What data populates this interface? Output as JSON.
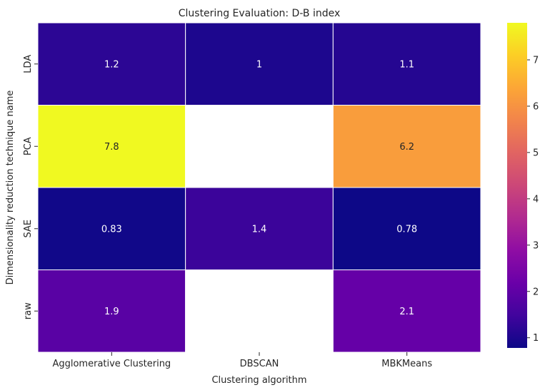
{
  "chart_data": {
    "type": "heatmap",
    "title": "Clustering Evaluation: D-B index",
    "xlabel": "Clustering algorithm",
    "ylabel": "Dimensionality reduction technique name",
    "x_categories": [
      "Agglomerative Clustering",
      "DBSCAN",
      "MBKMeans"
    ],
    "y_categories": [
      "LDA",
      "PCA",
      "SAE",
      "raw"
    ],
    "values": [
      [
        1.2,
        1.0,
        1.1
      ],
      [
        7.8,
        null,
        6.2
      ],
      [
        0.83,
        1.4,
        0.78
      ],
      [
        1.9,
        null,
        2.1
      ]
    ],
    "annotations": [
      [
        "1.2",
        "1",
        "1.1"
      ],
      [
        "7.8",
        "",
        "6.2"
      ],
      [
        "0.83",
        "1.4",
        "0.78"
      ],
      [
        "1.9",
        "",
        "2.1"
      ]
    ],
    "colormap": "plasma",
    "vmin": 0.78,
    "vmax": 7.8,
    "colorbar_ticks": [
      1,
      2,
      3,
      4,
      5,
      6,
      7
    ],
    "missing_color": "#ffffff",
    "grid_line_color": "#ffffff"
  }
}
